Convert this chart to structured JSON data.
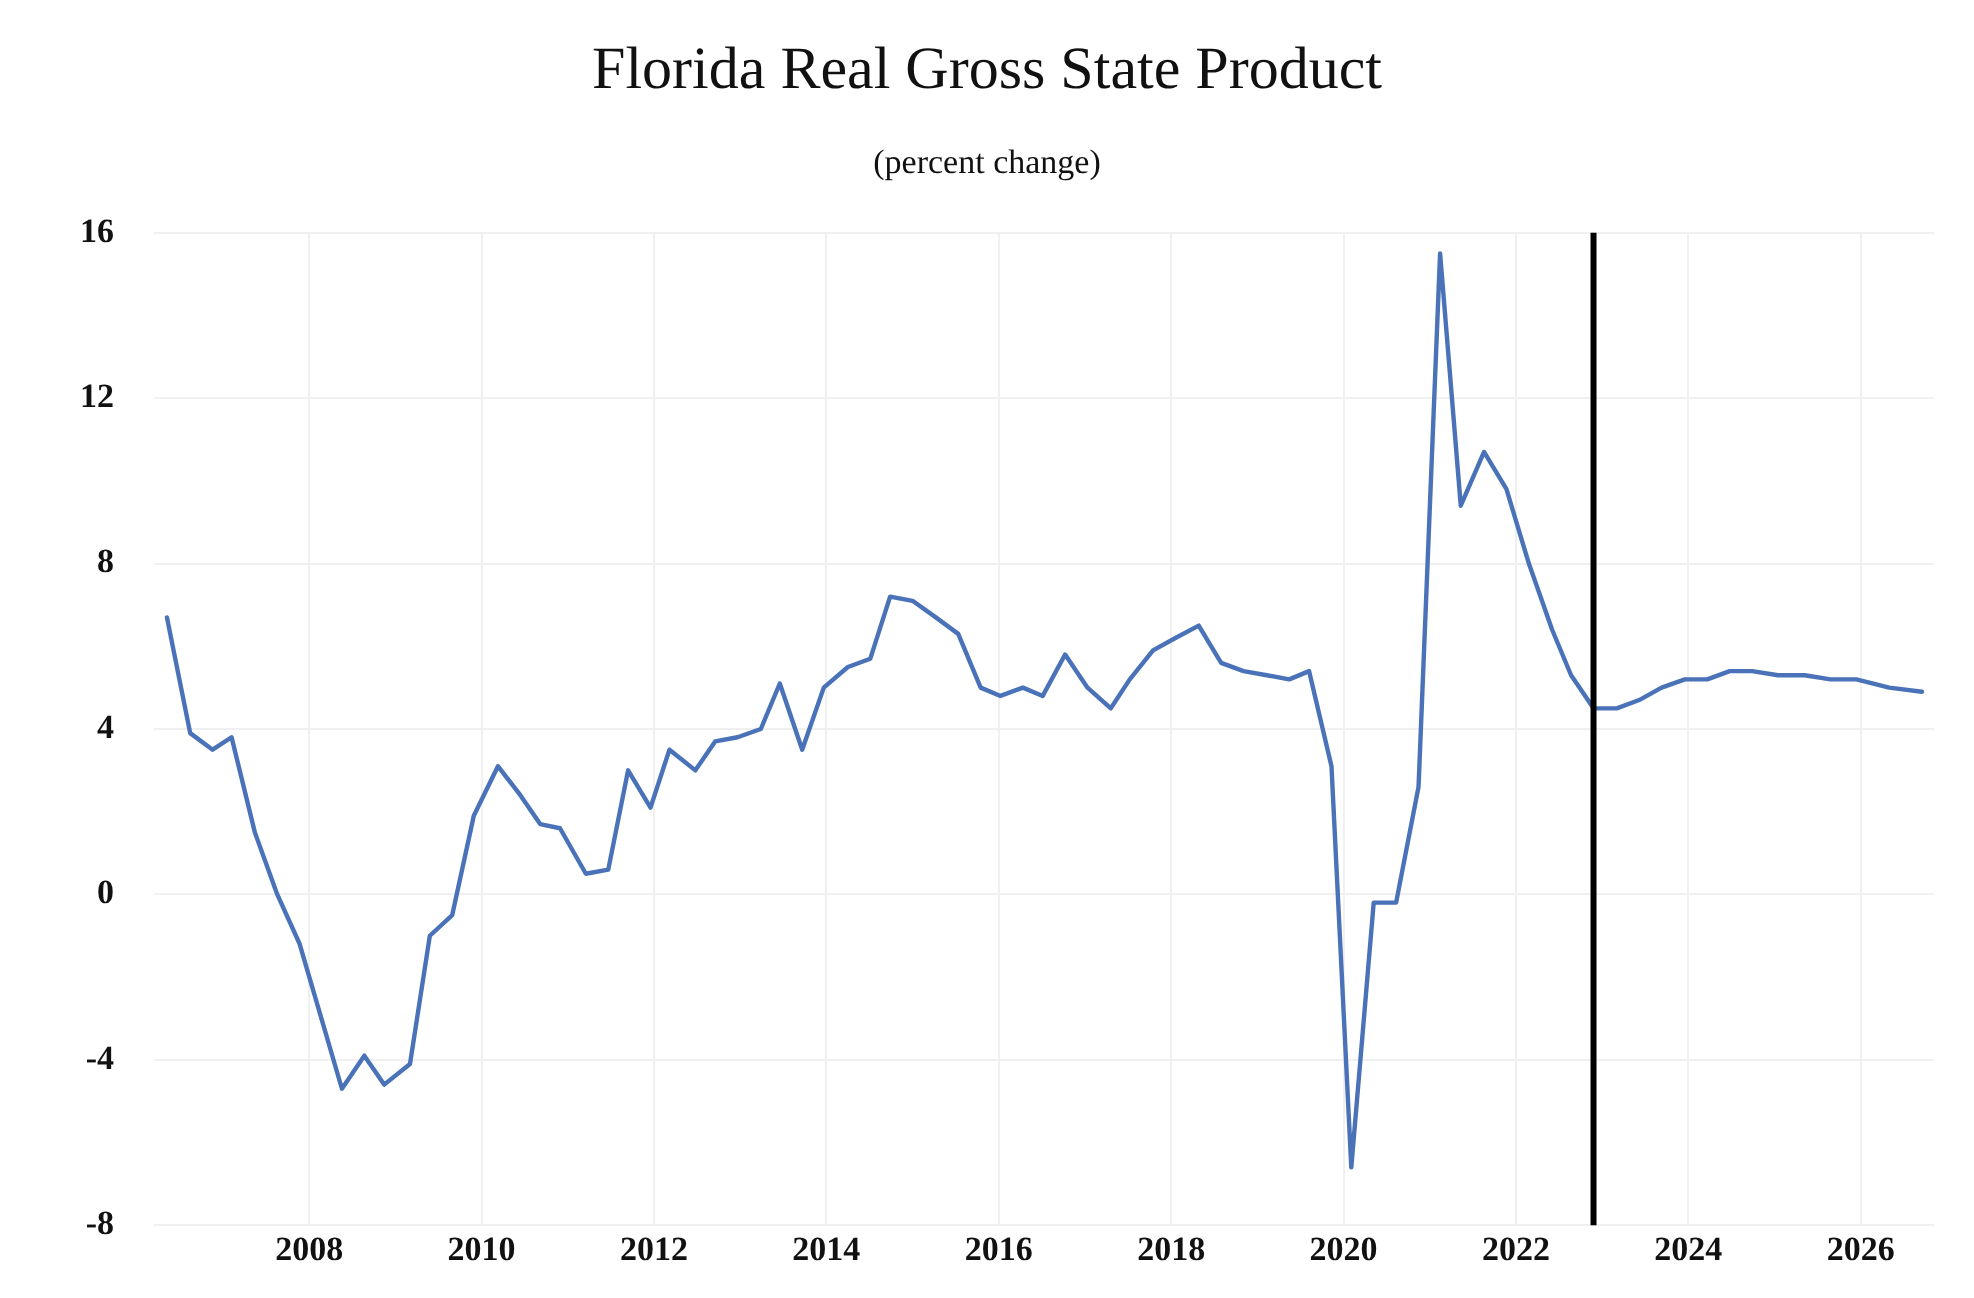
{
  "chart_data": {
    "type": "line",
    "title": "Florida Real Gross State Product",
    "subtitle": "(percent change)",
    "x": [
      2006.35,
      2006.62,
      2006.88,
      2007.1,
      2007.37,
      2007.63,
      2007.89,
      2008.38,
      2008.64,
      2008.87,
      2009.17,
      2009.4,
      2009.66,
      2009.91,
      2010.19,
      2010.45,
      2010.68,
      2010.91,
      2011.21,
      2011.47,
      2011.7,
      2011.96,
      2012.18,
      2012.48,
      2012.71,
      2012.97,
      2013.24,
      2013.46,
      2013.72,
      2013.97,
      2014.25,
      2014.51,
      2014.74,
      2015.0,
      2015.27,
      2015.53,
      2015.79,
      2016.02,
      2016.28,
      2016.51,
      2016.77,
      2017.03,
      2017.3,
      2017.52,
      2017.79,
      2018.05,
      2018.32,
      2018.58,
      2018.84,
      2019.11,
      2019.37,
      2019.6,
      2019.86,
      2020.09,
      2020.35,
      2020.61,
      2020.87,
      2021.12,
      2021.36,
      2021.63,
      2021.89,
      2022.15,
      2022.42,
      2022.64,
      2022.9,
      2023.17,
      2023.43,
      2023.69,
      2023.96,
      2024.22,
      2024.48,
      2024.74,
      2025.04,
      2025.35,
      2025.65,
      2025.95,
      2026.33,
      2026.71
    ],
    "series": [
      {
        "color": "#4a72b8",
        "values": [
          6.7,
          3.9,
          3.5,
          3.8,
          1.5,
          0.0,
          -1.2,
          -4.7,
          -3.9,
          -4.6,
          -4.1,
          -1.0,
          -0.5,
          1.9,
          3.1,
          2.4,
          1.7,
          1.6,
          0.5,
          0.6,
          3.0,
          2.1,
          3.5,
          3.0,
          3.7,
          3.8,
          4.0,
          5.1,
          3.5,
          5.0,
          5.5,
          5.7,
          7.2,
          7.1,
          6.7,
          6.3,
          5.0,
          4.8,
          5.0,
          4.8,
          5.8,
          5.0,
          4.5,
          5.2,
          5.9,
          6.2,
          6.5,
          5.6,
          5.4,
          5.3,
          5.2,
          5.4,
          3.1,
          -6.6,
          -0.2,
          -0.2,
          2.6,
          15.5,
          9.4,
          10.7,
          9.8,
          8.0,
          6.4,
          5.3,
          4.5,
          4.5,
          4.7,
          5.0,
          5.2,
          5.2,
          5.4,
          5.4,
          5.3,
          5.3,
          5.2,
          5.2,
          5.0,
          4.9
        ]
      }
    ],
    "xlim": [
      2006.2,
      2026.85
    ],
    "xticks": [
      2008,
      2010,
      2012,
      2014,
      2016,
      2018,
      2020,
      2022,
      2024,
      2026
    ],
    "ylim": [
      -8,
      16
    ],
    "yticks": [
      -8,
      -4,
      0,
      4,
      8,
      12,
      16
    ],
    "ref_lines": [
      {
        "axis": "x",
        "value": 2022.9,
        "color": "#000000"
      }
    ],
    "grid": true,
    "legend": false,
    "marker": "none",
    "line_style": "solid"
  }
}
